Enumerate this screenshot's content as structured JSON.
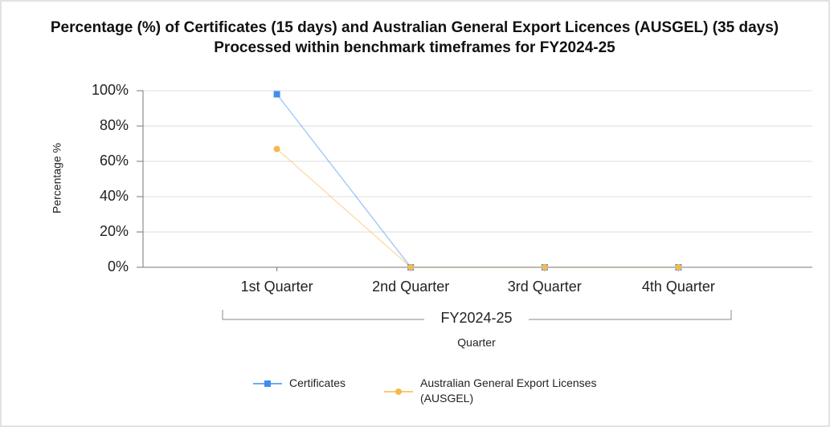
{
  "chart_data": {
    "type": "line",
    "title": "Percentage (%) of Certificates (15 days) and Australian General Export Licences (AUSGEL) (35 days) Processed within benchmark timeframes for FY2024-25",
    "categories": [
      "1st Quarter",
      "2nd Quarter",
      "3rd Quarter",
      "4th Quarter"
    ],
    "category_group": "FY2024-25",
    "x_label": "Quarter",
    "y_label": "Percentage %",
    "series": [
      {
        "name": "Certificates",
        "color": "#3f8ef0",
        "marker": "square",
        "values": [
          98,
          0,
          0,
          0
        ]
      },
      {
        "name": "Australian General Export Licenses (AUSGEL)",
        "color": "#f6b94c",
        "marker": "circle",
        "values": [
          67,
          0,
          0,
          0
        ]
      }
    ],
    "ylim": [
      0,
      100
    ],
    "yticks": [
      {
        "value": 0,
        "label": "0%"
      },
      {
        "value": 20,
        "label": "20%"
      },
      {
        "value": 40,
        "label": "40%"
      },
      {
        "value": 60,
        "label": "60%"
      },
      {
        "value": 80,
        "label": "80%"
      },
      {
        "value": 100,
        "label": "100%"
      }
    ],
    "grid": true,
    "legend_position": "bottom"
  }
}
